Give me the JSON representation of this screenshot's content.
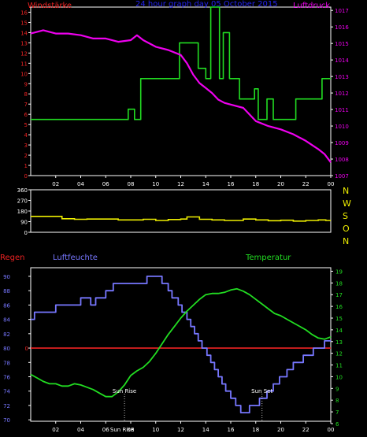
{
  "chart_data": [
    {
      "type": "line",
      "title": "24 hour graph day   05 October 2015",
      "left_axis_label": "Windstärke",
      "right_axis_label": "Luftdruck",
      "x_ticks": [
        "02",
        "04",
        "06",
        "08",
        "10",
        "12",
        "14",
        "16",
        "18",
        "20",
        "22",
        "00"
      ],
      "left_ticks": [
        "0",
        "1",
        "2",
        "3",
        "4",
        "5",
        "6",
        "7",
        "8",
        "9",
        "10",
        "11",
        "12",
        "13",
        "14",
        "15",
        "16"
      ],
      "right_ticks": [
        "1007",
        "1008",
        "1009",
        "1010",
        "1011",
        "1012",
        "1013",
        "1014",
        "1015",
        "1016",
        "1017"
      ],
      "ylim_left": [
        0,
        16.5
      ],
      "ylim_right": [
        1007,
        1017.2
      ],
      "x_range": [
        0,
        24
      ],
      "series": [
        {
          "name": "Windstärke",
          "color": "#22dd22",
          "step": true,
          "points": [
            [
              0,
              5.5
            ],
            [
              7.8,
              5.5
            ],
            [
              7.8,
              6.5
            ],
            [
              8.3,
              6.5
            ],
            [
              8.3,
              5.5
            ],
            [
              8.8,
              5.5
            ],
            [
              8.8,
              9.5
            ],
            [
              11.9,
              9.5
            ],
            [
              11.9,
              13
            ],
            [
              13.4,
              13
            ],
            [
              13.4,
              10.5
            ],
            [
              14,
              10.5
            ],
            [
              14,
              9.5
            ],
            [
              14.4,
              9.5
            ],
            [
              14.4,
              16.5
            ],
            [
              15.1,
              16.5
            ],
            [
              15.1,
              9.5
            ],
            [
              15.4,
              9.5
            ],
            [
              15.4,
              14
            ],
            [
              15.9,
              14
            ],
            [
              15.9,
              9.5
            ],
            [
              16.7,
              9.5
            ],
            [
              16.7,
              7.5
            ],
            [
              17.9,
              7.5
            ],
            [
              17.9,
              8.5
            ],
            [
              18.2,
              8.5
            ],
            [
              18.2,
              5.5
            ],
            [
              18.9,
              5.5
            ],
            [
              18.9,
              7.5
            ],
            [
              19.4,
              7.5
            ],
            [
              19.4,
              5.5
            ],
            [
              21.2,
              5.5
            ],
            [
              21.2,
              7.5
            ],
            [
              23.3,
              7.5
            ],
            [
              23.3,
              9.5
            ],
            [
              24,
              9.5
            ]
          ]
        },
        {
          "name": "Luftdruck",
          "color": "#ee00ee",
          "axis": "right",
          "points": [
            [
              0,
              1015.6
            ],
            [
              1,
              1015.8
            ],
            [
              2,
              1015.6
            ],
            [
              3,
              1015.6
            ],
            [
              4,
              1015.5
            ],
            [
              5,
              1015.3
            ],
            [
              6,
              1015.3
            ],
            [
              7,
              1015.1
            ],
            [
              8,
              1015.2
            ],
            [
              8.5,
              1015.5
            ],
            [
              9,
              1015.2
            ],
            [
              10,
              1014.8
            ],
            [
              11,
              1014.6
            ],
            [
              12,
              1014.3
            ],
            [
              12.5,
              1013.8
            ],
            [
              13,
              1013.1
            ],
            [
              13.5,
              1012.6
            ],
            [
              14,
              1012.3
            ],
            [
              14.5,
              1012.0
            ],
            [
              15,
              1011.6
            ],
            [
              15.5,
              1011.4
            ],
            [
              16,
              1011.3
            ],
            [
              17,
              1011.1
            ],
            [
              18,
              1010.3
            ],
            [
              19,
              1010.0
            ],
            [
              20,
              1009.8
            ],
            [
              21,
              1009.5
            ],
            [
              22,
              1009.1
            ],
            [
              23,
              1008.6
            ],
            [
              23.5,
              1008.3
            ],
            [
              24,
              1007.8
            ]
          ]
        }
      ]
    },
    {
      "type": "line",
      "left_ticks": [
        "0",
        "90",
        "180",
        "270",
        "360"
      ],
      "right_labels": [
        "N",
        "W",
        "S",
        "O",
        "N"
      ],
      "ylim": [
        0,
        360
      ],
      "x_range": [
        0,
        24
      ],
      "series": [
        {
          "name": "Windrichtung",
          "color": "#eeee00",
          "step": true,
          "points": [
            [
              0,
              135
            ],
            [
              2.5,
              135
            ],
            [
              2.5,
              115
            ],
            [
              3.5,
              115
            ],
            [
              3.5,
              110
            ],
            [
              4.5,
              110
            ],
            [
              4.5,
              112
            ],
            [
              7,
              112
            ],
            [
              7,
              105
            ],
            [
              9,
              105
            ],
            [
              9,
              110
            ],
            [
              10,
              110
            ],
            [
              10,
              100
            ],
            [
              11,
              100
            ],
            [
              11,
              108
            ],
            [
              12,
              108
            ],
            [
              12,
              112
            ],
            [
              12.5,
              112
            ],
            [
              12.5,
              130
            ],
            [
              13.5,
              130
            ],
            [
              13.5,
              110
            ],
            [
              14.5,
              110
            ],
            [
              14.5,
              105
            ],
            [
              15.5,
              105
            ],
            [
              15.5,
              100
            ],
            [
              17,
              100
            ],
            [
              17,
              112
            ],
            [
              18,
              112
            ],
            [
              18,
              105
            ],
            [
              19,
              105
            ],
            [
              19,
              98
            ],
            [
              20,
              98
            ],
            [
              20,
              102
            ],
            [
              21,
              102
            ],
            [
              21,
              95
            ],
            [
              22,
              95
            ],
            [
              22,
              100
            ],
            [
              23,
              100
            ],
            [
              23,
              105
            ],
            [
              23.6,
              105
            ],
            [
              23.6,
              100
            ],
            [
              24,
              100
            ]
          ]
        }
      ]
    },
    {
      "type": "line",
      "left_label": "Regen",
      "humidity_label": "Luftfeuchte",
      "temp_label": "Temperatur",
      "x_ticks": [
        "02",
        "04",
        "06",
        "08",
        "10",
        "12",
        "14",
        "16",
        "18",
        "20",
        "22",
        "00"
      ],
      "humidity_ticks": [
        "70",
        "72",
        "74",
        "76",
        "78",
        "80",
        "82",
        "84",
        "86",
        "88",
        "90"
      ],
      "temp_ticks": [
        "6",
        "7",
        "8",
        "9",
        "10",
        "11",
        "12",
        "13",
        "14",
        "15",
        "16",
        "17",
        "18",
        "19"
      ],
      "rain_tick": "0",
      "rain_value": 0,
      "ylim_humidity": [
        69.8,
        91.2
      ],
      "ylim_temp": [
        6.2,
        19.3
      ],
      "x_range": [
        0,
        24
      ],
      "sun_rise": {
        "label": "Sun Rise",
        "time_label": "Sun Rise",
        "x": 7.5
      },
      "sun_set": {
        "label": "Sun Set",
        "x": 18.5
      },
      "series": [
        {
          "name": "Luftfeuchte",
          "color": "#7777ff",
          "step": true,
          "points": [
            [
              0,
              84
            ],
            [
              0.3,
              84
            ],
            [
              0.3,
              85
            ],
            [
              2,
              85
            ],
            [
              2,
              86
            ],
            [
              4,
              86
            ],
            [
              4,
              87
            ],
            [
              4.8,
              87
            ],
            [
              4.8,
              86
            ],
            [
              5.2,
              86
            ],
            [
              5.2,
              87
            ],
            [
              6,
              87
            ],
            [
              6,
              88
            ],
            [
              6.6,
              88
            ],
            [
              6.6,
              89
            ],
            [
              9.3,
              89
            ],
            [
              9.3,
              90
            ],
            [
              10.5,
              90
            ],
            [
              10.5,
              89
            ],
            [
              11,
              89
            ],
            [
              11,
              88
            ],
            [
              11.3,
              88
            ],
            [
              11.3,
              87
            ],
            [
              11.8,
              87
            ],
            [
              11.8,
              86
            ],
            [
              12.1,
              86
            ],
            [
              12.1,
              85
            ],
            [
              12.5,
              85
            ],
            [
              12.5,
              84
            ],
            [
              12.8,
              84
            ],
            [
              12.8,
              83
            ],
            [
              13.1,
              83
            ],
            [
              13.1,
              82
            ],
            [
              13.4,
              82
            ],
            [
              13.4,
              81
            ],
            [
              13.7,
              81
            ],
            [
              13.7,
              80
            ],
            [
              14.1,
              80
            ],
            [
              14.1,
              79
            ],
            [
              14.4,
              79
            ],
            [
              14.4,
              78
            ],
            [
              14.7,
              78
            ],
            [
              14.7,
              77
            ],
            [
              15,
              77
            ],
            [
              15,
              76
            ],
            [
              15.3,
              76
            ],
            [
              15.3,
              75
            ],
            [
              15.6,
              75
            ],
            [
              15.6,
              74
            ],
            [
              16,
              74
            ],
            [
              16,
              73
            ],
            [
              16.4,
              73
            ],
            [
              16.4,
              72
            ],
            [
              16.8,
              72
            ],
            [
              16.8,
              71
            ],
            [
              17.5,
              71
            ],
            [
              17.5,
              72
            ],
            [
              18.3,
              72
            ],
            [
              18.3,
              73
            ],
            [
              18.9,
              73
            ],
            [
              18.9,
              74
            ],
            [
              19.4,
              74
            ],
            [
              19.4,
              75
            ],
            [
              19.9,
              75
            ],
            [
              19.9,
              76
            ],
            [
              20.5,
              76
            ],
            [
              20.5,
              77
            ],
            [
              21,
              77
            ],
            [
              21,
              78
            ],
            [
              21.8,
              78
            ],
            [
              21.8,
              79
            ],
            [
              22.6,
              79
            ],
            [
              22.6,
              80
            ],
            [
              23.5,
              80
            ],
            [
              23.5,
              81
            ],
            [
              24,
              81
            ]
          ]
        },
        {
          "name": "Temperatur",
          "color": "#22dd22",
          "points": [
            [
              0,
              10.2
            ],
            [
              0.5,
              9.9
            ],
            [
              1,
              9.6
            ],
            [
              1.5,
              9.4
            ],
            [
              2,
              9.4
            ],
            [
              2.5,
              9.2
            ],
            [
              3,
              9.2
            ],
            [
              3.5,
              9.4
            ],
            [
              4,
              9.3
            ],
            [
              4.5,
              9.1
            ],
            [
              5,
              8.9
            ],
            [
              5.5,
              8.6
            ],
            [
              6,
              8.3
            ],
            [
              6.5,
              8.3
            ],
            [
              7,
              8.7
            ],
            [
              7.5,
              9.3
            ],
            [
              8,
              10.1
            ],
            [
              8.5,
              10.5
            ],
            [
              9,
              10.8
            ],
            [
              9.5,
              11.3
            ],
            [
              10,
              12.0
            ],
            [
              10.5,
              12.8
            ],
            [
              11,
              13.6
            ],
            [
              11.5,
              14.3
            ],
            [
              12,
              15.0
            ],
            [
              12.5,
              15.6
            ],
            [
              13,
              16.1
            ],
            [
              13.5,
              16.6
            ],
            [
              14,
              17.0
            ],
            [
              14.5,
              17.1
            ],
            [
              15,
              17.1
            ],
            [
              15.5,
              17.2
            ],
            [
              16,
              17.4
            ],
            [
              16.5,
              17.5
            ],
            [
              17,
              17.3
            ],
            [
              17.5,
              17.0
            ],
            [
              18,
              16.6
            ],
            [
              18.5,
              16.2
            ],
            [
              19,
              15.8
            ],
            [
              19.5,
              15.4
            ],
            [
              20,
              15.2
            ],
            [
              20.5,
              14.9
            ],
            [
              21,
              14.6
            ],
            [
              21.5,
              14.3
            ],
            [
              22,
              14.0
            ],
            [
              22.5,
              13.6
            ],
            [
              23,
              13.3
            ],
            [
              23.5,
              13.2
            ],
            [
              24,
              13.4
            ]
          ]
        }
      ]
    }
  ]
}
